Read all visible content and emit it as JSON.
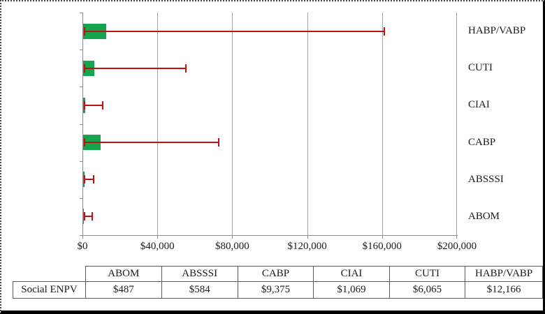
{
  "chart_data": {
    "type": "bar",
    "orientation": "horizontal",
    "title": "",
    "xlabel": "",
    "ylabel": "",
    "series_name": "Social ENPV",
    "x_axis": {
      "min": 0,
      "max": 200000,
      "tick_interval": 40000,
      "tick_labels": [
        "$0",
        "$40,000",
        "$80,000",
        "$120,000",
        "$160,000",
        "$200,000"
      ],
      "grid": true
    },
    "rows_top_to_bottom": [
      {
        "category": "HABP/VABP",
        "value": 12166,
        "value_label": "$12,166",
        "err_low": 900,
        "err_high": 161000
      },
      {
        "category": "CUTI",
        "value": 6065,
        "value_label": "$6,065",
        "err_low": 900,
        "err_high": 55000
      },
      {
        "category": "CIAI",
        "value": 1069,
        "value_label": "$1,069",
        "err_low": 900,
        "err_high": 10400
      },
      {
        "category": "CABP",
        "value": 9375,
        "value_label": "$9,375",
        "err_low": 900,
        "err_high": 72300
      },
      {
        "category": "ABSSSI",
        "value": 584,
        "value_label": "$584",
        "err_low": 900,
        "err_high": 5600
      },
      {
        "category": "ABOM",
        "value": 487,
        "value_label": "$487",
        "err_low": 900,
        "err_high": 4900
      }
    ],
    "colors": {
      "bar": "#17a44f",
      "error_bar": "#c01111",
      "gridline": "#a3a3a3",
      "axis": "#8c8c8c",
      "text": "#1a1a1a"
    },
    "legend_position": "none"
  },
  "table": {
    "row_label": "Social ENPV",
    "columns": [
      "ABOM",
      "ABSSSI",
      "CABP",
      "CIAI",
      "CUTI",
      "HABP/VABP"
    ],
    "values": [
      "$487",
      "$584",
      "$9,375",
      "$1,069",
      "$6,065",
      "$12,166"
    ]
  }
}
